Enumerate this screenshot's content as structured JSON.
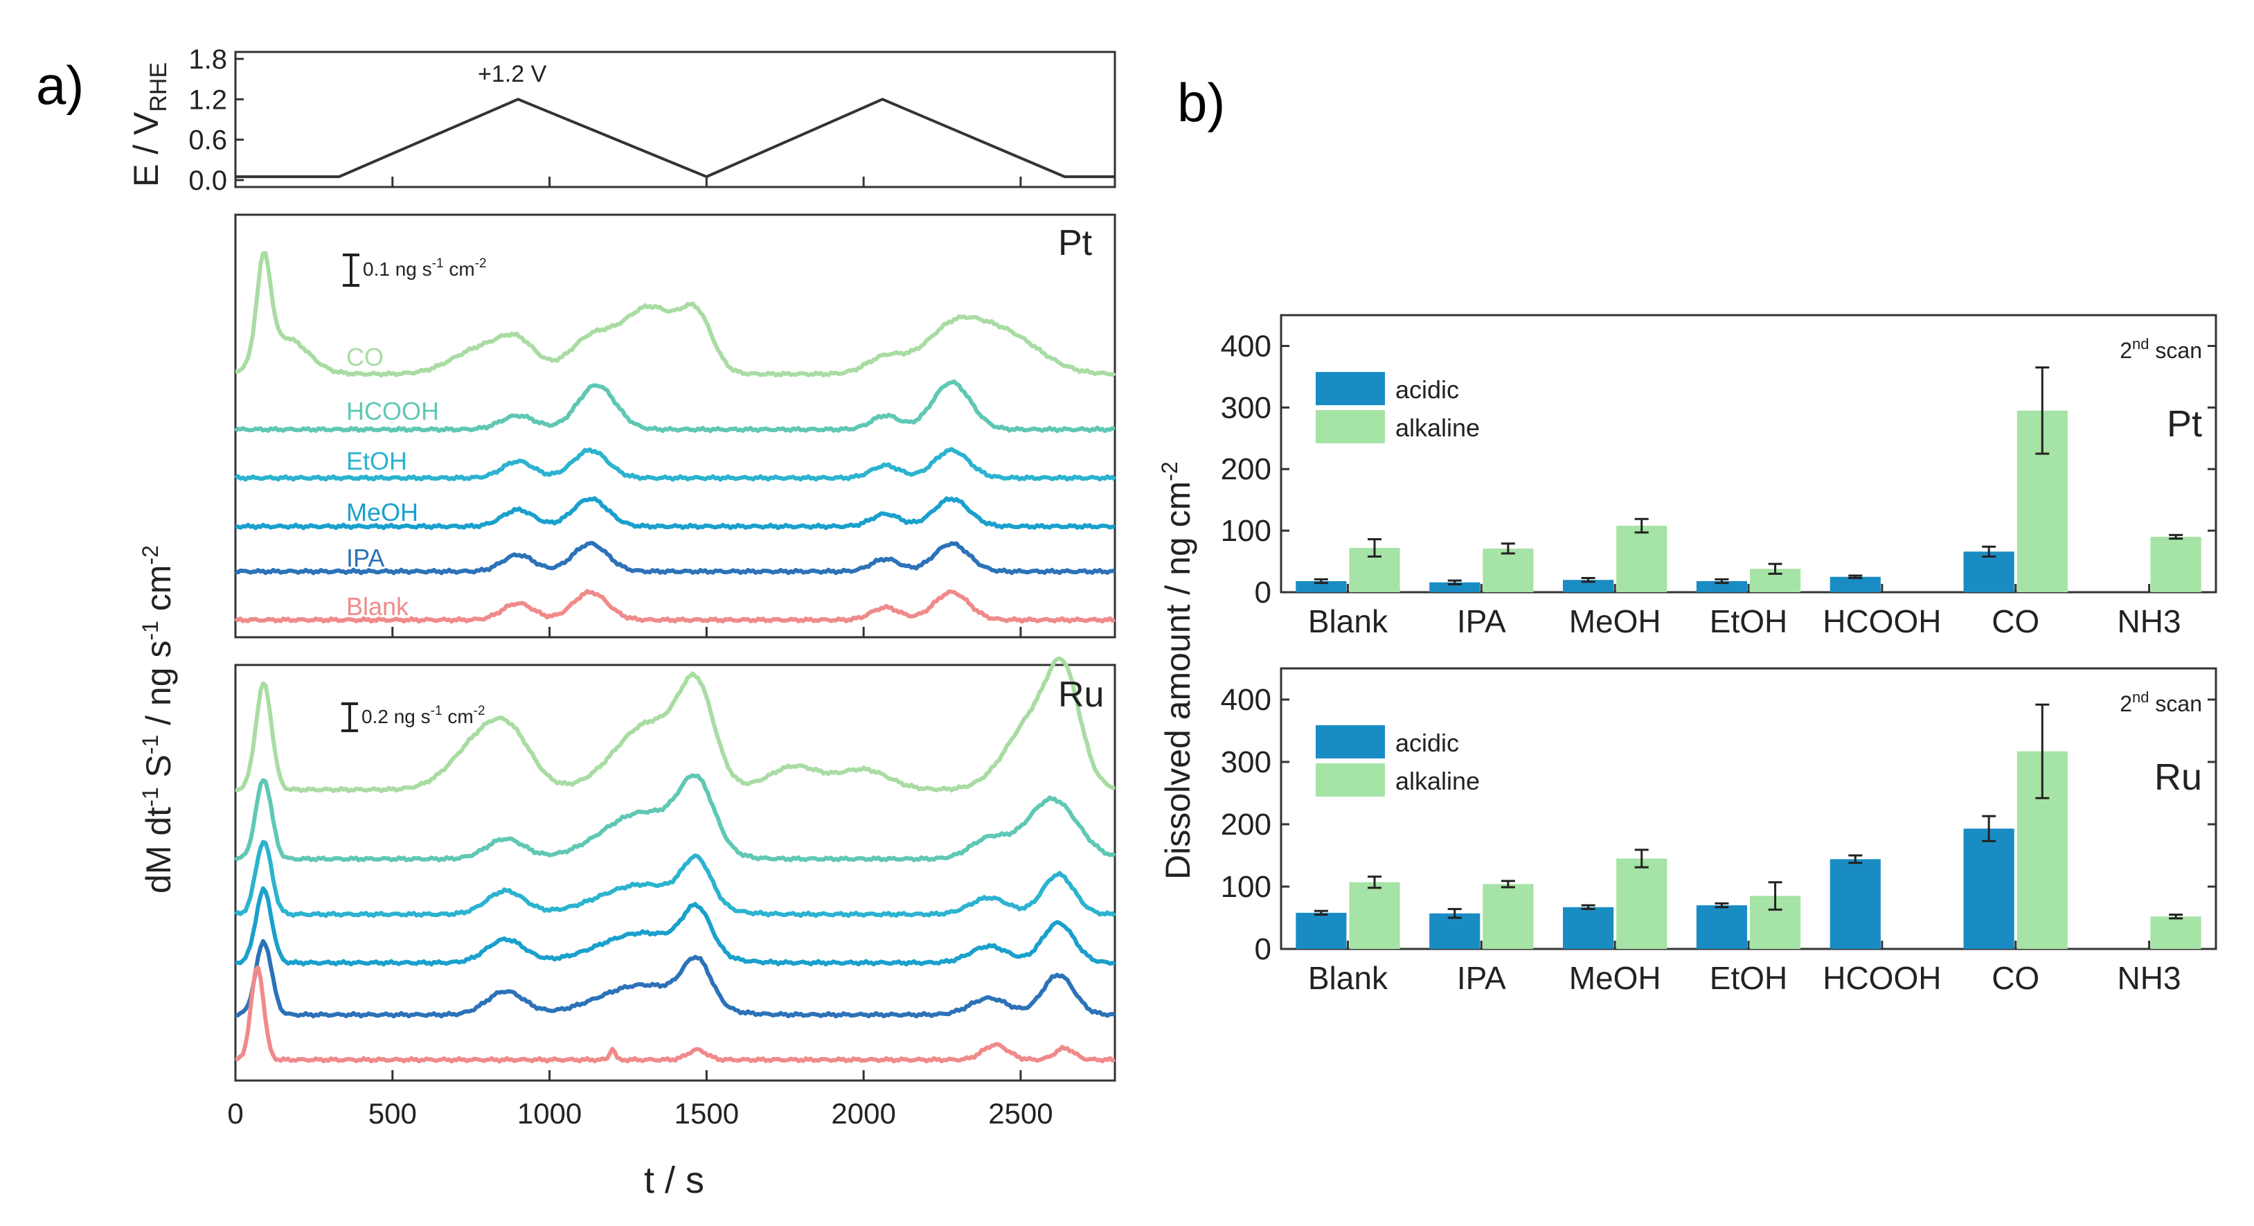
{
  "panel_a": {
    "label": "a)",
    "potential": {
      "ylabel": "E / V",
      "ylabel_sub": "RHE",
      "yticks": [
        "0.0",
        "0.6",
        "1.2",
        "1.8"
      ],
      "ylim": [
        0,
        1.8
      ],
      "annotation": "+1.2 V",
      "waveform": [
        [
          0,
          0.05
        ],
        [
          330,
          0.05
        ],
        [
          900,
          1.2
        ],
        [
          1500,
          0.05
        ],
        [
          2060,
          1.2
        ],
        [
          2640,
          0.05
        ],
        [
          2800,
          0.05
        ]
      ]
    },
    "ylabel": "dM dt",
    "ylabel_sup1": "-1",
    "ylabel_mid": " S",
    "ylabel_sup2": "-1",
    "ylabel_mid2": " / ng s",
    "ylabel_sup3": "-1",
    "ylabel_mid3": " cm",
    "ylabel_sup4": "-2",
    "xlabel": "t / s",
    "xticks": [
      "0",
      "500",
      "1000",
      "1500",
      "2000",
      "2500"
    ],
    "xlim": [
      0,
      2800
    ],
    "pt": {
      "metal": "Pt",
      "scale_text": "0.1 ng s",
      "scale_sup1": "-1",
      "scale_mid": " cm",
      "scale_sup2": "-2"
    },
    "ru": {
      "metal": "Ru",
      "scale_text": "0.2 ng s",
      "scale_sup1": "-1",
      "scale_mid": " cm",
      "scale_sup2": "-2"
    },
    "traces": [
      {
        "name": "CO",
        "color": "#a9dca3"
      },
      {
        "name": "HCOOH",
        "color": "#5fc8b4"
      },
      {
        "name": "EtOH",
        "color": "#2bb3cf"
      },
      {
        "name": "MeOH",
        "color": "#1aa0cc"
      },
      {
        "name": "IPA",
        "color": "#2c72b8"
      },
      {
        "name": "Blank",
        "color": "#f08a8a"
      }
    ]
  },
  "panel_b": {
    "label": "b)",
    "ylabel": "Dissolved amount / ng cm",
    "ylabel_sup": "-2",
    "scan_text": "2",
    "scan_sup": "nd",
    "scan_rest": " scan"
  },
  "chart_data": [
    {
      "type": "bar",
      "title": "Pt",
      "categories": [
        "Blank",
        "IPA",
        "MeOH",
        "EtOH",
        "HCOOH",
        "CO",
        "NH3"
      ],
      "series": [
        {
          "name": "acidic",
          "color": "#1a8cc4",
          "values": [
            18,
            16,
            20,
            18,
            25,
            66,
            null
          ],
          "errors": [
            3,
            3,
            3,
            3,
            2,
            8,
            null
          ]
        },
        {
          "name": "alkaline",
          "color": "#a6e3a6",
          "values": [
            72,
            71,
            108,
            38,
            null,
            295,
            90
          ],
          "errors": [
            14,
            8,
            11,
            8,
            null,
            70,
            3
          ]
        }
      ],
      "ylim": [
        0,
        450
      ],
      "yticks": [
        0,
        100,
        200,
        300,
        400
      ],
      "legend": "top-left"
    },
    {
      "type": "bar",
      "title": "Ru",
      "categories": [
        "Blank",
        "IPA",
        "MeOH",
        "EtOH",
        "HCOOH",
        "CO",
        "NH3"
      ],
      "series": [
        {
          "name": "acidic",
          "color": "#1a8cc4",
          "values": [
            58,
            57,
            67,
            70,
            144,
            193,
            null
          ],
          "errors": [
            3,
            7,
            3,
            3,
            6,
            20,
            null
          ]
        },
        {
          "name": "alkaline",
          "color": "#a6e3a6",
          "values": [
            107,
            104,
            145,
            85,
            null,
            317,
            52
          ],
          "errors": [
            9,
            5,
            14,
            22,
            null,
            75,
            3
          ]
        }
      ],
      "ylim": [
        0,
        450
      ],
      "yticks": [
        0,
        100,
        200,
        300,
        400
      ],
      "legend": "top-left"
    }
  ]
}
